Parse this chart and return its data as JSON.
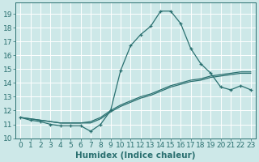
{
  "xlabel": "Humidex (Indice chaleur)",
  "bg_color": "#cde8e8",
  "grid_color": "#ffffff",
  "line_color": "#2a7070",
  "xlim": [
    -0.5,
    23.5
  ],
  "ylim": [
    10.0,
    19.8
  ],
  "xticks": [
    0,
    1,
    2,
    3,
    4,
    5,
    6,
    7,
    8,
    9,
    10,
    11,
    12,
    13,
    14,
    15,
    16,
    17,
    18,
    19,
    20,
    21,
    22,
    23
  ],
  "yticks": [
    10,
    11,
    12,
    13,
    14,
    15,
    16,
    17,
    18,
    19
  ],
  "main_y": [
    11.5,
    11.3,
    11.2,
    11.0,
    10.9,
    10.9,
    10.9,
    10.5,
    11.0,
    12.0,
    14.9,
    16.7,
    17.5,
    18.1,
    19.2,
    19.2,
    18.3,
    16.5,
    15.4,
    14.7,
    13.7,
    13.5,
    13.8,
    13.5
  ],
  "line2_y": [
    11.5,
    11.4,
    11.3,
    11.2,
    11.1,
    11.1,
    11.1,
    11.1,
    11.4,
    11.9,
    12.3,
    12.6,
    12.9,
    13.1,
    13.4,
    13.7,
    13.9,
    14.1,
    14.2,
    14.4,
    14.5,
    14.6,
    14.7,
    14.7
  ],
  "line3_y": [
    11.5,
    11.4,
    11.3,
    11.2,
    11.1,
    11.1,
    11.1,
    11.2,
    11.5,
    12.0,
    12.4,
    12.7,
    13.0,
    13.2,
    13.5,
    13.8,
    14.0,
    14.2,
    14.3,
    14.5,
    14.6,
    14.7,
    14.8,
    14.8
  ],
  "tick_fontsize": 6.5,
  "xlabel_fontsize": 7.5
}
